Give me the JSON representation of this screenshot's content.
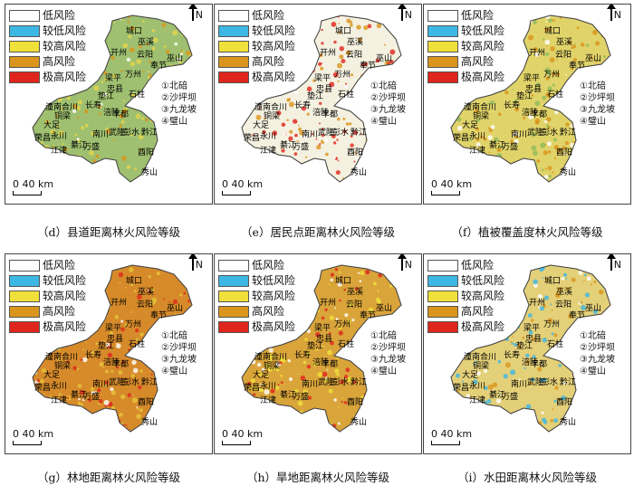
{
  "legend": [
    {
      "label": "低风险",
      "color": "#ffffff"
    },
    {
      "label": "较低风险",
      "color": "#3db7e4"
    },
    {
      "label": "较高风险",
      "color": "#f0e03a"
    },
    {
      "label": "高风险",
      "color": "#d9951c"
    },
    {
      "label": "极高风险",
      "color": "#e0261c"
    }
  ],
  "north_label": "N",
  "district_notes": [
    "①北碚",
    "②沙坪坝",
    "③九龙坡",
    "④璧山"
  ],
  "scale": {
    "zero": "0",
    "value": "40 km"
  },
  "place_names": [
    "城口",
    "巫溪",
    "开州",
    "云阳",
    "巫山",
    "奉节",
    "万州",
    "梁平",
    "忠县",
    "垫江",
    "石柱",
    "长寿",
    "涪陵",
    "丰都",
    "潼南",
    "合川",
    "铜梁",
    "大足",
    "永川",
    "荣昌",
    "江津",
    "綦江",
    "万盛",
    "南川",
    "武隆",
    "彭水",
    "黔江",
    "酉阳",
    "秀山"
  ],
  "panels": [
    {
      "id": "d",
      "caption": "（d）县道距离林火风险等级",
      "dominant": "#9fc070",
      "accent": "#e6d54a",
      "hot": "#d9951c"
    },
    {
      "id": "e",
      "caption": "（e）居民点距离林火风险等级",
      "dominant": "#f4f1e0",
      "accent": "#e0261c",
      "hot": "#d9951c"
    },
    {
      "id": "f",
      "caption": "（f）植被覆盖度林火风险等级",
      "dominant": "#e0d36a",
      "accent": "#d9951c",
      "hot": "#8dbb5a"
    },
    {
      "id": "g",
      "caption": "（g）林地距离林火风险等级",
      "dominant": "#d68a2a",
      "accent": "#e6c43a",
      "hot": "#e0261c"
    },
    {
      "id": "h",
      "caption": "（h）旱地距离林火风险等级",
      "dominant": "#d9a43a",
      "accent": "#f0e03a",
      "hot": "#e0261c"
    },
    {
      "id": "i",
      "caption": "（i）水田距离林火风险等级",
      "dominant": "#e4d078",
      "accent": "#3db7e4",
      "hot": "#d9951c"
    }
  ]
}
